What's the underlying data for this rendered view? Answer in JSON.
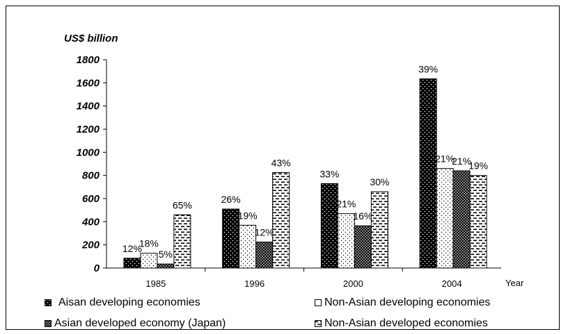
{
  "chart_data": {
    "type": "bar",
    "ylabel": "US$ billion",
    "xlabel": "Year",
    "categories": [
      "1985",
      "1996",
      "2000",
      "2004"
    ],
    "ylim": [
      0,
      1800
    ],
    "yticks": [
      0,
      200,
      400,
      600,
      800,
      1000,
      1200,
      1400,
      1600,
      1800
    ],
    "grid": false,
    "legend_position": "bottom",
    "series": [
      {
        "name": "Aisan developing economies",
        "values": [
          85,
          510,
          730,
          1635
        ],
        "labels": [
          "12%",
          "26%",
          "33%",
          "39%"
        ],
        "pattern": "dark-dotted"
      },
      {
        "name": "Non-Asian developing economies",
        "values": [
          128,
          370,
          470,
          860
        ],
        "labels": [
          "18%",
          "19%",
          "21%",
          "21%"
        ],
        "pattern": "light-dotted"
      },
      {
        "name": "Asian developed economy (Japan)",
        "values": [
          35,
          225,
          365,
          840
        ],
        "labels": [
          "5%",
          "12%",
          "16%",
          "21%"
        ],
        "pattern": "checkered"
      },
      {
        "name": "Non-Asian developed economies",
        "values": [
          460,
          825,
          660,
          800
        ],
        "labels": [
          "65%",
          "43%",
          "30%",
          "19%"
        ],
        "pattern": "dashed"
      }
    ]
  }
}
